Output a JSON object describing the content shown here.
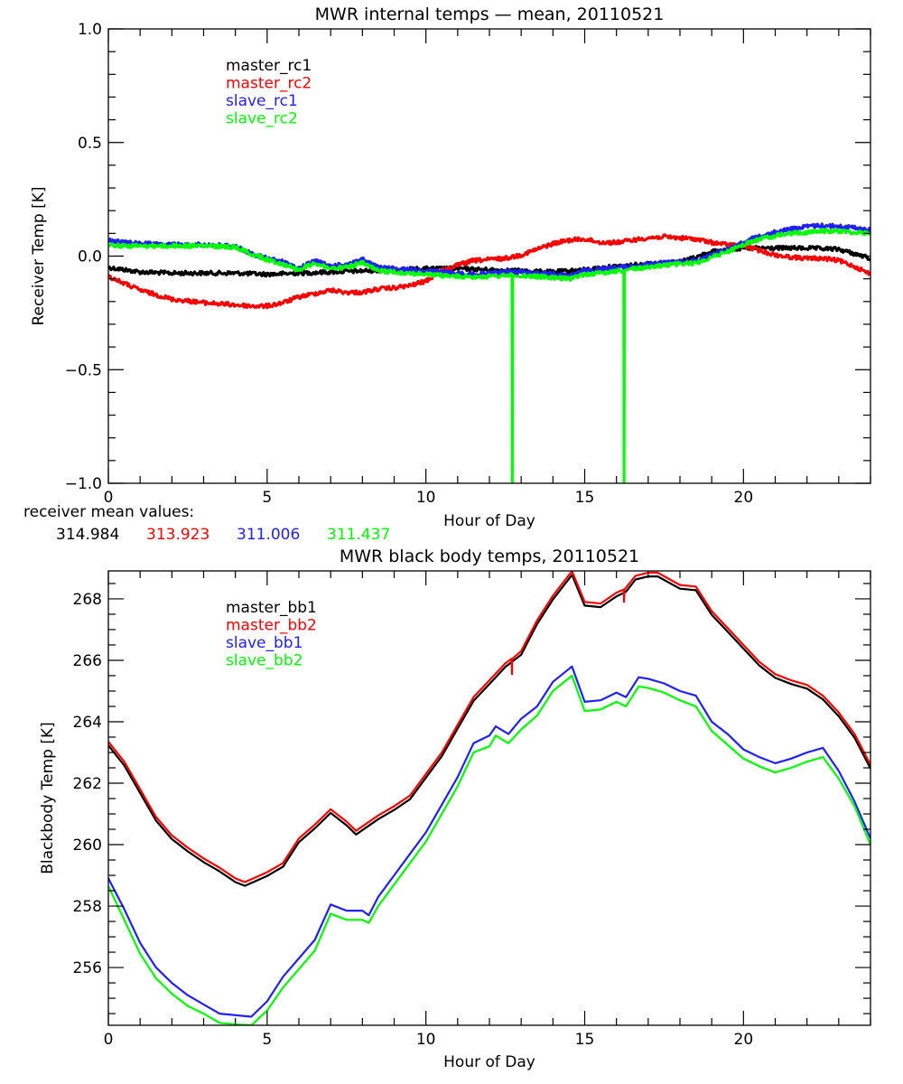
{
  "colors": {
    "black": "#000000",
    "red": "#ff0000",
    "blue": "#2020ff",
    "green": "#00ff00"
  },
  "receiver_note": {
    "label": "receiver mean values:",
    "values": [
      {
        "text": "314.984",
        "color": "black"
      },
      {
        "text": "313.923",
        "color": "red"
      },
      {
        "text": "311.006",
        "color": "blue"
      },
      {
        "text": "311.437",
        "color": "green"
      }
    ]
  },
  "chart_data": [
    {
      "type": "line",
      "title": "MWR internal temps — mean, 20110521",
      "xlabel": "Hour of Day",
      "ylabel": "Receiver Temp [K]",
      "xlim": [
        0,
        24
      ],
      "ylim": [
        -1.0,
        1.0
      ],
      "xticks": [
        0,
        5,
        10,
        15,
        20
      ],
      "xtick_labels": [
        "0",
        "5",
        "10",
        "15",
        "20"
      ],
      "x_minor_step": 1,
      "yticks": [
        -1.0,
        -0.5,
        0.0,
        0.5,
        1.0
      ],
      "ytick_labels": [
        "−1.0",
        "−0.5",
        "0.0",
        "0.5",
        "1.0"
      ],
      "y_minor_step": 0.1,
      "grid": false,
      "legend_position": "top-left",
      "noisy": true,
      "series": [
        {
          "name": "master_rc1",
          "color": "black",
          "x": [
            0,
            0.5,
            1,
            2,
            3,
            4,
            5,
            6,
            7,
            8,
            9,
            10,
            11,
            12,
            13,
            14,
            15,
            16,
            17,
            18,
            18.5,
            19,
            20,
            21,
            22,
            23,
            23.5,
            24
          ],
          "y": [
            -0.05,
            -0.06,
            -0.07,
            -0.075,
            -0.075,
            -0.075,
            -0.08,
            -0.075,
            -0.07,
            -0.065,
            -0.06,
            -0.055,
            -0.055,
            -0.06,
            -0.065,
            -0.07,
            -0.06,
            -0.045,
            -0.035,
            -0.025,
            -0.005,
            0.02,
            0.035,
            0.035,
            0.035,
            0.03,
            0.01,
            -0.01
          ]
        },
        {
          "name": "master_rc2",
          "color": "red",
          "x": [
            0,
            0.5,
            1,
            2,
            3,
            4,
            4.5,
            5,
            5.5,
            6,
            6.5,
            7,
            7.5,
            8,
            8.5,
            9,
            9.5,
            10,
            10.5,
            11,
            11.5,
            12,
            12.5,
            13,
            13.5,
            14,
            14.5,
            15,
            15.5,
            16,
            16.5,
            17,
            17.5,
            18,
            18.5,
            19,
            19.5,
            20,
            20.5,
            21,
            21.5,
            22,
            22.5,
            23,
            23.5,
            24
          ],
          "y": [
            -0.09,
            -0.12,
            -0.15,
            -0.19,
            -0.205,
            -0.215,
            -0.22,
            -0.22,
            -0.205,
            -0.18,
            -0.165,
            -0.15,
            -0.16,
            -0.16,
            -0.145,
            -0.14,
            -0.13,
            -0.11,
            -0.065,
            -0.04,
            -0.02,
            -0.015,
            -0.01,
            0.005,
            0.03,
            0.055,
            0.07,
            0.075,
            0.06,
            0.06,
            0.07,
            0.08,
            0.085,
            0.08,
            0.075,
            0.06,
            0.05,
            0.045,
            0.025,
            0.005,
            -0.005,
            -0.01,
            -0.01,
            -0.02,
            -0.045,
            -0.08
          ]
        },
        {
          "name": "slave_rc1",
          "color": "blue",
          "x": [
            0,
            0.5,
            1,
            2,
            3,
            4,
            4.5,
            5,
            5.5,
            6,
            6.5,
            7,
            7.5,
            8,
            8.5,
            9,
            9.5,
            10,
            10.5,
            11,
            11.5,
            12,
            12.5,
            13,
            13.5,
            14,
            14.5,
            15,
            15.5,
            16,
            16.5,
            17,
            17.5,
            18,
            18.5,
            19,
            19.5,
            20,
            20.5,
            21,
            21.5,
            22,
            22.5,
            23,
            23.5,
            24
          ],
          "y": [
            0.07,
            0.06,
            0.055,
            0.05,
            0.05,
            0.045,
            0.01,
            -0.01,
            -0.025,
            -0.055,
            -0.02,
            -0.045,
            -0.035,
            -0.015,
            -0.05,
            -0.055,
            -0.06,
            -0.065,
            -0.07,
            -0.075,
            -0.08,
            -0.075,
            -0.07,
            -0.07,
            -0.075,
            -0.08,
            -0.085,
            -0.065,
            -0.06,
            -0.05,
            -0.045,
            -0.035,
            -0.03,
            -0.025,
            -0.02,
            0.005,
            0.03,
            0.06,
            0.09,
            0.105,
            0.12,
            0.13,
            0.135,
            0.13,
            0.125,
            0.115
          ]
        },
        {
          "name": "slave_rc2",
          "color": "green",
          "x": [
            0,
            0.5,
            1,
            2,
            3,
            4,
            4.5,
            5,
            5.5,
            6,
            6.5,
            7,
            7.5,
            8,
            8.5,
            9,
            9.5,
            10,
            10.5,
            11,
            11.5,
            12,
            12.5,
            12.71,
            12.72,
            12.73,
            13,
            13.5,
            14,
            14.5,
            15,
            15.5,
            16,
            16.23,
            16.24,
            16.25,
            16.5,
            17,
            17.5,
            18,
            18.5,
            19,
            19.5,
            20,
            20.5,
            21,
            21.5,
            22,
            22.5,
            23,
            23.5,
            24
          ],
          "y": [
            0.05,
            0.045,
            0.045,
            0.045,
            0.045,
            0.04,
            0.01,
            -0.015,
            -0.035,
            -0.06,
            -0.03,
            -0.055,
            -0.05,
            -0.03,
            -0.065,
            -0.07,
            -0.075,
            -0.08,
            -0.085,
            -0.09,
            -0.09,
            -0.09,
            -0.085,
            -0.085,
            -1.0,
            -0.085,
            -0.085,
            -0.09,
            -0.095,
            -0.1,
            -0.08,
            -0.075,
            -0.065,
            -0.065,
            -1.0,
            -0.065,
            -0.055,
            -0.05,
            -0.04,
            -0.035,
            -0.03,
            -0.005,
            0.02,
            0.05,
            0.075,
            0.09,
            0.1,
            0.105,
            0.11,
            0.11,
            0.105,
            0.1
          ]
        }
      ]
    },
    {
      "type": "line",
      "title": "MWR black body temps, 20110521",
      "xlabel": "Hour of Day",
      "ylabel": "Blackbody Temp [K]",
      "xlim": [
        0,
        24
      ],
      "ylim": [
        254.12,
        268.91
      ],
      "xticks": [
        0,
        5,
        10,
        15,
        20
      ],
      "xtick_labels": [
        "0",
        "5",
        "10",
        "15",
        "20"
      ],
      "x_minor_step": 1,
      "yticks": [
        256,
        258,
        260,
        262,
        264,
        266,
        268
      ],
      "ytick_labels": [
        "256",
        "258",
        "260",
        "262",
        "264",
        "266",
        "268"
      ],
      "y_minor_step": 0.5,
      "grid": false,
      "legend_position": "top-left",
      "noisy": false,
      "series": [
        {
          "name": "master_bb1",
          "color": "black",
          "x": [
            0,
            0.5,
            1,
            1.5,
            2,
            2.5,
            3,
            3.5,
            4,
            4.3,
            5,
            5.5,
            6,
            6.5,
            7,
            7.5,
            7.8,
            8.5,
            9,
            9.5,
            10,
            10.5,
            11,
            11.5,
            12,
            12.5,
            13,
            13.5,
            14,
            14.6,
            15,
            15.5,
            16,
            16.3,
            16.6,
            17,
            17.3,
            18,
            18.5,
            19,
            19.5,
            20,
            20.5,
            21,
            21.5,
            22,
            22.5,
            23,
            23.5,
            24
          ],
          "y": [
            263.23,
            262.58,
            261.68,
            260.78,
            260.18,
            259.78,
            259.43,
            259.13,
            258.78,
            258.66,
            258.98,
            259.28,
            260.08,
            260.53,
            261.03,
            260.63,
            260.33,
            260.83,
            261.13,
            261.48,
            262.18,
            262.88,
            263.78,
            264.68,
            265.23,
            265.78,
            266.18,
            267.18,
            267.98,
            268.78,
            267.78,
            267.73,
            268.08,
            268.23,
            268.63,
            268.73,
            268.73,
            268.33,
            268.28,
            267.48,
            266.93,
            266.38,
            265.83,
            265.43,
            265.23,
            265.08,
            264.73,
            264.18,
            263.48,
            262.48
          ]
        },
        {
          "name": "master_bb2",
          "color": "red",
          "x": [
            0,
            0.5,
            1,
            1.5,
            2,
            2.5,
            3,
            3.5,
            4,
            4.3,
            5,
            5.5,
            6,
            6.5,
            7,
            7.5,
            7.8,
            8.5,
            9,
            9.5,
            10,
            10.5,
            11,
            11.5,
            12,
            12.5,
            12.7,
            12.71,
            12.72,
            13,
            13.5,
            14,
            14.6,
            15,
            15.5,
            16,
            16.23,
            16.24,
            16.25,
            16.6,
            17,
            17.3,
            18,
            18.5,
            19,
            19.5,
            20,
            20.5,
            21,
            21.5,
            22,
            22.5,
            23,
            23.5,
            24
          ],
          "y": [
            263.35,
            262.7,
            261.8,
            260.9,
            260.3,
            259.9,
            259.55,
            259.25,
            258.9,
            258.78,
            259.1,
            259.4,
            260.2,
            260.65,
            261.15,
            260.75,
            260.45,
            260.95,
            261.25,
            261.6,
            262.3,
            263.0,
            263.9,
            264.8,
            265.35,
            265.9,
            266.05,
            265.55,
            266.05,
            266.3,
            267.3,
            268.1,
            268.9,
            267.9,
            267.85,
            268.2,
            268.3,
            267.9,
            268.3,
            268.75,
            268.85,
            268.85,
            268.45,
            268.4,
            267.6,
            267.05,
            266.5,
            265.95,
            265.55,
            265.35,
            265.2,
            264.85,
            264.3,
            263.6,
            262.6
          ]
        },
        {
          "name": "slave_bb1",
          "color": "blue",
          "x": [
            0,
            0.5,
            1,
            1.5,
            2,
            2.5,
            3,
            3.5,
            4,
            4.5,
            5,
            5.5,
            6,
            6.5,
            7,
            7.5,
            8,
            8.2,
            8.5,
            9,
            9.5,
            10,
            10.5,
            11,
            11.5,
            12,
            12.2,
            12.6,
            13,
            13.5,
            14,
            14.6,
            15,
            15.5,
            16,
            16.3,
            16.7,
            17,
            17.5,
            18,
            18.5,
            19,
            19.5,
            20,
            20.5,
            21,
            21.5,
            22,
            22.5,
            23,
            23.5,
            24
          ],
          "y": [
            258.9,
            257.9,
            256.8,
            256.0,
            255.5,
            255.1,
            254.8,
            254.5,
            254.45,
            254.4,
            254.9,
            255.7,
            256.3,
            256.9,
            258.05,
            257.85,
            257.85,
            257.7,
            258.3,
            259.0,
            259.7,
            260.4,
            261.3,
            262.2,
            263.3,
            263.55,
            263.85,
            263.6,
            264.1,
            264.5,
            265.3,
            265.8,
            264.65,
            264.7,
            264.95,
            264.8,
            265.45,
            265.4,
            265.25,
            265.0,
            264.85,
            264.0,
            263.6,
            263.1,
            262.85,
            262.65,
            262.8,
            263.0,
            263.15,
            262.4,
            261.4,
            260.2
          ]
        },
        {
          "name": "slave_bb2",
          "color": "green",
          "x": [
            0,
            0.5,
            1,
            1.5,
            2,
            2.5,
            3,
            3.5,
            4,
            4.5,
            5,
            5.5,
            6,
            6.5,
            7,
            7.5,
            8,
            8.2,
            8.5,
            9,
            9.5,
            10,
            10.5,
            11,
            11.5,
            12,
            12.2,
            12.6,
            13,
            13.5,
            14,
            14.6,
            15,
            15.5,
            16,
            16.3,
            16.7,
            17,
            17.5,
            18,
            18.5,
            19,
            19.5,
            20,
            20.5,
            21,
            21.5,
            22,
            22.5,
            23,
            23.5,
            24
          ],
          "y": [
            258.65,
            257.55,
            256.45,
            255.65,
            255.15,
            254.75,
            254.5,
            254.2,
            254.15,
            254.12,
            254.6,
            255.35,
            255.95,
            256.55,
            257.75,
            257.55,
            257.55,
            257.45,
            258.0,
            258.7,
            259.4,
            260.1,
            261.0,
            261.9,
            263.0,
            263.2,
            263.55,
            263.3,
            263.75,
            264.2,
            265.0,
            265.5,
            264.35,
            264.4,
            264.65,
            264.5,
            265.15,
            265.1,
            264.95,
            264.7,
            264.5,
            263.7,
            263.25,
            262.8,
            262.55,
            262.35,
            262.5,
            262.7,
            262.85,
            262.15,
            261.25,
            260.0
          ]
        }
      ]
    }
  ]
}
